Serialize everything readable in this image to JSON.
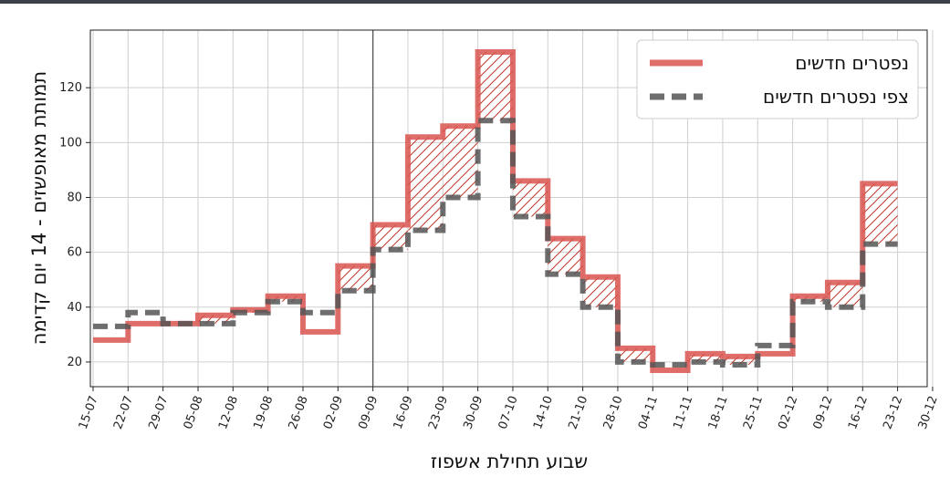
{
  "chart_data": {
    "type": "line",
    "step": true,
    "xlabel": "שבוע תחילת אשפוז",
    "ylabel": "תמותת מאופשזים - 14 יום קדימה",
    "x_tick_labels": [
      "15-07",
      "22-07",
      "29-07",
      "05-08",
      "12-08",
      "19-08",
      "26-08",
      "02-09",
      "09-09",
      "16-09",
      "23-09",
      "30-09",
      "07-10",
      "14-10",
      "21-10",
      "28-10",
      "04-11",
      "11-11",
      "18-11",
      "25-11",
      "02-12",
      "09-12",
      "16-12",
      "23-12",
      "30-12"
    ],
    "y_ticks": [
      20,
      40,
      60,
      80,
      100,
      120
    ],
    "ylim": [
      11,
      141
    ],
    "grid": true,
    "legend_position": "top-right",
    "vertical_marker_at": "09-09",
    "colors": {
      "actual": "#d9534f",
      "predicted": "#555555",
      "hatch": "#c0392b"
    },
    "series": [
      {
        "name": "נפטרים חדשים",
        "style": "solid",
        "values": [
          28,
          34,
          34,
          37,
          39,
          44,
          31,
          55,
          70,
          102,
          106,
          133,
          86,
          65,
          51,
          25,
          17,
          23,
          22,
          23,
          44,
          49,
          85
        ]
      },
      {
        "name": "צפי נפטרים חדשים",
        "style": "dashed",
        "values": [
          33,
          38,
          34,
          34,
          38,
          42,
          38,
          46,
          61,
          68,
          80,
          108,
          73,
          52,
          40,
          20,
          19,
          20,
          19,
          26,
          42,
          40,
          63
        ]
      }
    ]
  }
}
